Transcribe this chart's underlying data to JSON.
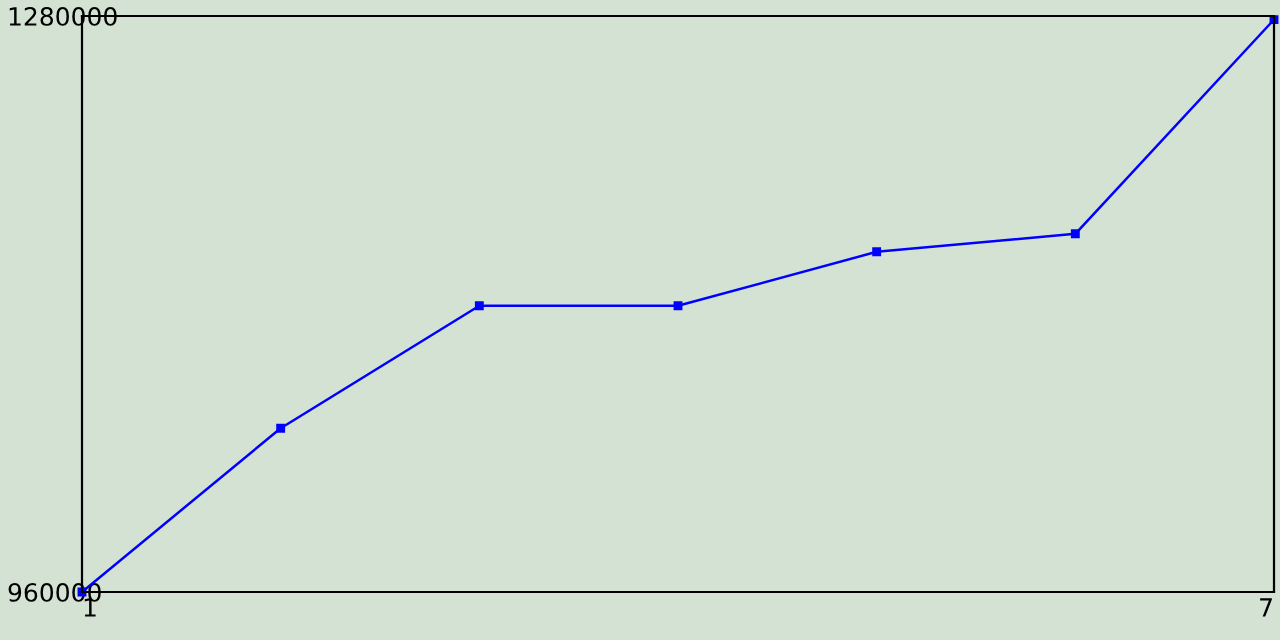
{
  "chart_data": {
    "type": "line",
    "x": [
      1,
      2,
      3,
      4,
      5,
      6,
      7
    ],
    "series": [
      {
        "color": "#0000ff",
        "values": [
          960000,
          1051000,
          1119000,
          1119000,
          1149000,
          1159000,
          1278000
        ]
      }
    ],
    "xlim": [
      1,
      7
    ],
    "xticks": [
      1,
      7
    ],
    "ylim": [
      960000,
      1280000
    ],
    "yticks": [
      960000,
      1280000
    ],
    "grid": false,
    "legend": false,
    "marker": "square",
    "line_style": "solid"
  }
}
